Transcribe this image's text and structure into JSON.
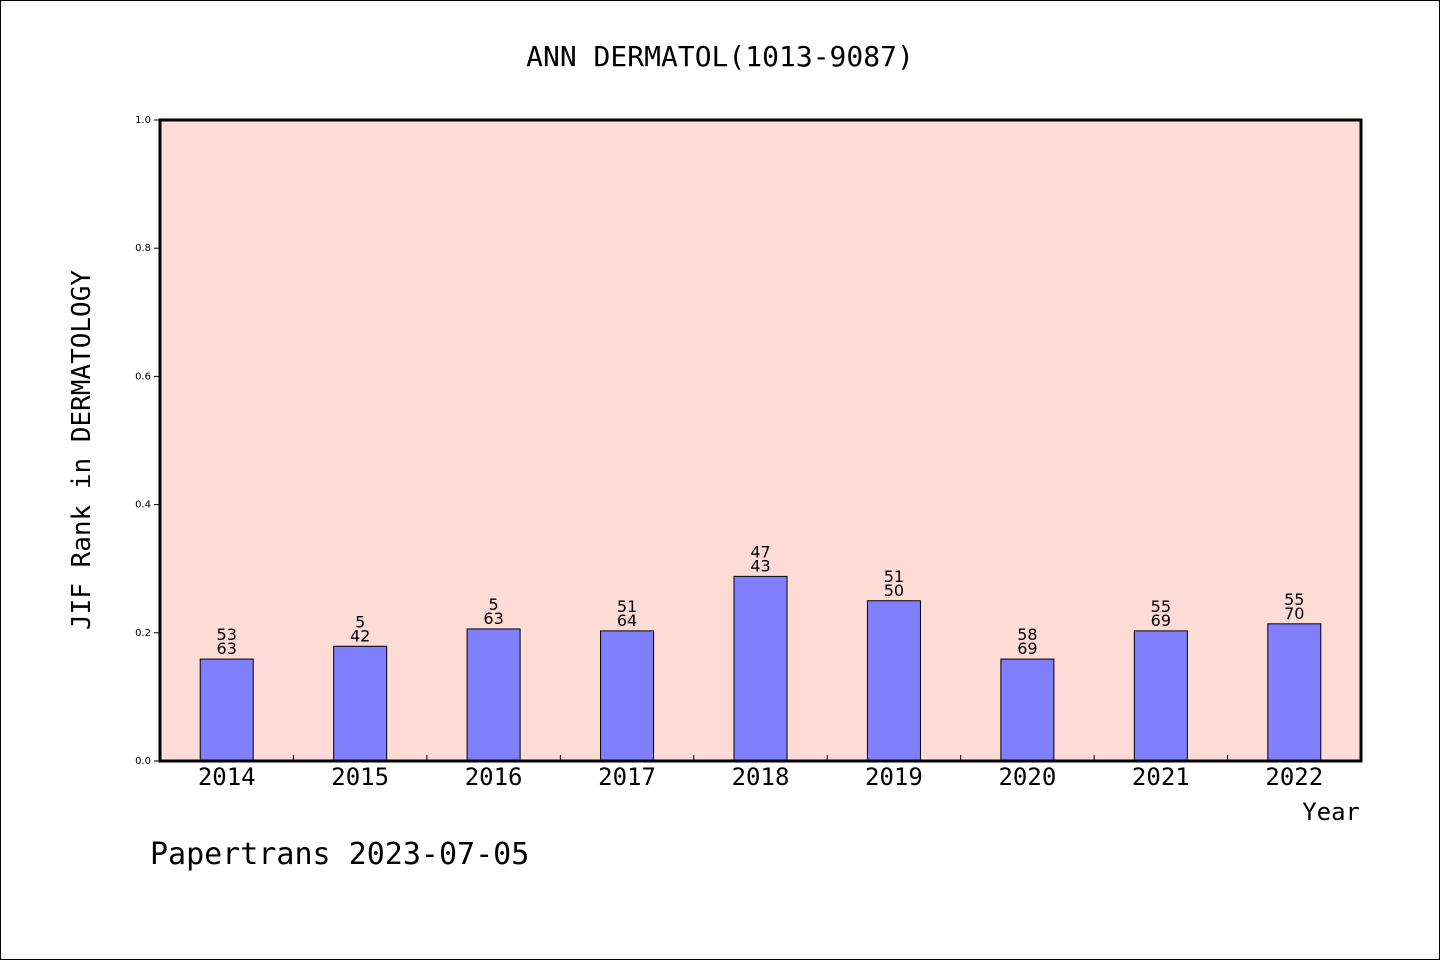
{
  "chart_data": {
    "type": "bar",
    "title": "ANN DERMATOL(1013-9087)",
    "xlabel": "Year",
    "ylabel": "JIF Rank in DERMATOLOGY",
    "ylim": [
      0,
      1.0
    ],
    "yticks": [
      "0.0",
      "0.2",
      "0.4",
      "0.6",
      "0.8",
      "1.0"
    ],
    "ytick_values": [
      0,
      0.2,
      0.4,
      0.6,
      0.8,
      1.0
    ],
    "categories": [
      "2014",
      "2015",
      "2016",
      "2017",
      "2018",
      "2019",
      "2020",
      "2021",
      "2022"
    ],
    "values": [
      0.159,
      0.179,
      0.206,
      0.203,
      0.288,
      0.25,
      0.159,
      0.203,
      0.214
    ],
    "label_top": [
      "53",
      "5",
      "5",
      "51",
      "47",
      "51",
      "58",
      "55",
      "55"
    ],
    "label_bottom": [
      "63",
      "42",
      "63",
      "64",
      "43",
      "50",
      "69",
      "69",
      "70"
    ],
    "grid": false,
    "colors": {
      "plot_background": "#fddbd7",
      "bar": "#8080ff",
      "bar_edge": "#000000"
    }
  },
  "footer": "Papertrans 2023-07-05"
}
